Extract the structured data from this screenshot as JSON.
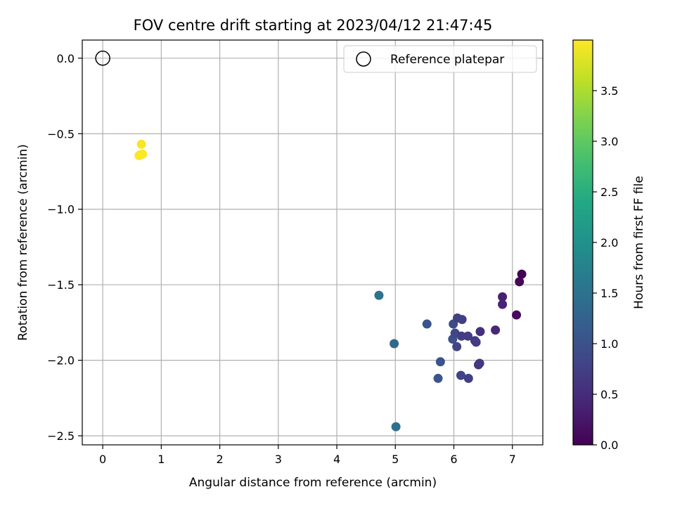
{
  "chart_data": {
    "type": "scatter",
    "title": "FOV centre drift starting at 2023/04/12 21:47:45",
    "xlabel": "Angular distance from reference (arcmin)",
    "ylabel": "Rotation from reference (arcmin)",
    "xlim": [
      -0.35,
      7.52
    ],
    "ylim": [
      -2.56,
      0.12
    ],
    "xticks": [
      0,
      1,
      2,
      3,
      4,
      5,
      6,
      7
    ],
    "yticks": [
      0.0,
      -0.5,
      -1.0,
      -1.5,
      -2.0,
      -2.5
    ],
    "ytick_labels": [
      "0.0",
      "−0.5",
      "−1.0",
      "−1.5",
      "−2.0",
      "−2.5"
    ],
    "xtick_labels": [
      "0",
      "1",
      "2",
      "3",
      "4",
      "5",
      "6",
      "7"
    ],
    "grid": true,
    "legend_position": "top-right",
    "reference": {
      "name": "Reference platepar",
      "x": 0,
      "y": 0
    },
    "colorbar": {
      "label": "Hours from first FF file",
      "range": [
        0,
        4.0
      ],
      "ticks": [
        0.0,
        0.5,
        1.0,
        1.5,
        2.0,
        2.5,
        3.0,
        3.5
      ],
      "tick_labels": [
        "0.0",
        "0.5",
        "1.0",
        "1.5",
        "2.0",
        "2.5",
        "3.0",
        "3.5"
      ],
      "colormap": "viridis"
    },
    "points": [
      {
        "x": 0.62,
        "y": -0.645,
        "hours": 4.0
      },
      {
        "x": 0.68,
        "y": -0.635,
        "hours": 4.0
      },
      {
        "x": 0.66,
        "y": -0.57,
        "hours": 3.97
      },
      {
        "x": 0.64,
        "y": -0.64,
        "hours": 3.99
      },
      {
        "x": 4.72,
        "y": -1.57,
        "hours": 1.5
      },
      {
        "x": 4.98,
        "y": -1.89,
        "hours": 1.35
      },
      {
        "x": 5.01,
        "y": -2.44,
        "hours": 1.45
      },
      {
        "x": 5.54,
        "y": -1.76,
        "hours": 1.05
      },
      {
        "x": 5.73,
        "y": -2.12,
        "hours": 1.05
      },
      {
        "x": 5.77,
        "y": -2.01,
        "hours": 1.0
      },
      {
        "x": 5.98,
        "y": -1.86,
        "hours": 0.95
      },
      {
        "x": 5.99,
        "y": -1.76,
        "hours": 0.9
      },
      {
        "x": 6.02,
        "y": -1.82,
        "hours": 0.85
      },
      {
        "x": 6.05,
        "y": -1.91,
        "hours": 0.8
      },
      {
        "x": 6.06,
        "y": -1.72,
        "hours": 0.75
      },
      {
        "x": 6.12,
        "y": -2.1,
        "hours": 0.8
      },
      {
        "x": 6.13,
        "y": -1.84,
        "hours": 0.7
      },
      {
        "x": 6.14,
        "y": -1.73,
        "hours": 0.75
      },
      {
        "x": 6.24,
        "y": -1.84,
        "hours": 0.7
      },
      {
        "x": 6.25,
        "y": -2.12,
        "hours": 0.75
      },
      {
        "x": 6.36,
        "y": -1.87,
        "hours": 0.65
      },
      {
        "x": 6.38,
        "y": -1.88,
        "hours": 0.7
      },
      {
        "x": 6.42,
        "y": -2.03,
        "hours": 0.6
      },
      {
        "x": 6.44,
        "y": -2.02,
        "hours": 0.65
      },
      {
        "x": 6.45,
        "y": -1.81,
        "hours": 0.55
      },
      {
        "x": 6.71,
        "y": -1.8,
        "hours": 0.45
      },
      {
        "x": 6.83,
        "y": -1.58,
        "hours": 0.35
      },
      {
        "x": 6.83,
        "y": -1.63,
        "hours": 0.4
      },
      {
        "x": 7.07,
        "y": -1.7,
        "hours": 0.1
      },
      {
        "x": 7.12,
        "y": -1.48,
        "hours": 0.05
      },
      {
        "x": 7.16,
        "y": -1.43,
        "hours": 0.0
      }
    ]
  }
}
